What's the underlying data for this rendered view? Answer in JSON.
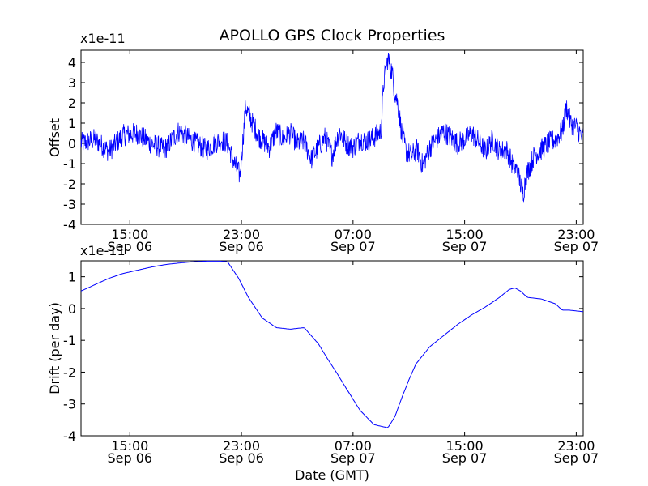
{
  "chart_data": [
    {
      "type": "line",
      "id": "offset",
      "title": "APOLLO GPS Clock Properties",
      "ylabel": "Offset",
      "xlabel": "",
      "scale_label": "x1e-11",
      "ylim": [
        -4,
        4.6
      ],
      "yticks": [
        -4,
        -3,
        -2,
        -1,
        0,
        1,
        2,
        3,
        4
      ],
      "ytick_labels": [
        "-4",
        "-3",
        "-2",
        "-1",
        "0",
        "1",
        "2",
        "3",
        "4"
      ],
      "xlim_hours": [
        11.5,
        47.5
      ],
      "xticks": [
        {
          "hour": 15,
          "time": "15:00",
          "date": "Sep 06"
        },
        {
          "hour": 23,
          "time": "23:00",
          "date": "Sep 06"
        },
        {
          "hour": 31,
          "time": "07:00",
          "date": "Sep 07"
        },
        {
          "hour": 39,
          "time": "15:00",
          "date": "Sep 07"
        },
        {
          "hour": 47,
          "time": "23:00",
          "date": "Sep 07"
        }
      ],
      "color": "#0000ff",
      "series": [
        {
          "name": "Offset",
          "x_hours": [
            11.5,
            12.5,
            13.5,
            14.5,
            15.5,
            16.5,
            17.5,
            18.5,
            19.5,
            20.5,
            21.5,
            22.0,
            22.5,
            22.9,
            23.3,
            23.8,
            24.3,
            25.0,
            25.5,
            26.0,
            26.5,
            27.0,
            27.5,
            28.0,
            28.5,
            29.0,
            29.5,
            30.0,
            30.5,
            31.0,
            31.5,
            32.0,
            32.5,
            33.0,
            33.2,
            33.5,
            33.8,
            34.0,
            34.2,
            34.5,
            34.8,
            35.2,
            35.6,
            36.0,
            36.5,
            37.0,
            37.5,
            38.0,
            38.5,
            39.0,
            39.5,
            40.0,
            40.5,
            41.0,
            41.5,
            42.0,
            42.4,
            42.8,
            43.0,
            43.2,
            43.4,
            43.7,
            44.0,
            44.5,
            45.0,
            45.5,
            46.0,
            46.3,
            46.6,
            47.0,
            47.5
          ],
          "values": [
            0.0,
            0.2,
            -0.4,
            0.4,
            0.5,
            0.0,
            -0.3,
            0.6,
            0.1,
            -0.3,
            0.2,
            0.0,
            -1.0,
            -1.6,
            1.8,
            1.0,
            0.3,
            -0.2,
            0.6,
            0.2,
            0.5,
            0.0,
            0.1,
            -0.8,
            -0.2,
            0.3,
            -0.6,
            0.6,
            0.0,
            -0.2,
            0.2,
            0.1,
            0.3,
            0.6,
            3.0,
            4.2,
            3.5,
            2.5,
            2.0,
            0.5,
            -0.4,
            -0.6,
            -0.3,
            -1.1,
            -0.2,
            0.2,
            0.6,
            0.3,
            0.0,
            0.2,
            0.5,
            0.1,
            -0.4,
            0.2,
            -0.4,
            -0.3,
            -1.0,
            -1.4,
            -2.0,
            -2.5,
            -1.6,
            -1.1,
            -0.6,
            -0.3,
            0.0,
            0.2,
            0.6,
            1.8,
            1.0,
            0.8,
            0.2
          ],
          "noise_amplitude": 0.55
        }
      ]
    },
    {
      "type": "line",
      "id": "drift",
      "title": "",
      "ylabel": "Drift (per day)",
      "xlabel": "Date (GMT)",
      "scale_label": "x1e-11",
      "ylim": [
        -4,
        1.5
      ],
      "yticks": [
        -4,
        -3,
        -2,
        -1,
        0,
        1
      ],
      "ytick_labels": [
        "-4",
        "-3",
        "-2",
        "-1",
        "0",
        "1"
      ],
      "xlim_hours": [
        11.5,
        47.5
      ],
      "xticks": [
        {
          "hour": 15,
          "time": "15:00",
          "date": "Sep 06"
        },
        {
          "hour": 23,
          "time": "23:00",
          "date": "Sep 06"
        },
        {
          "hour": 31,
          "time": "07:00",
          "date": "Sep 07"
        },
        {
          "hour": 39,
          "time": "15:00",
          "date": "Sep 07"
        },
        {
          "hour": 47,
          "time": "23:00",
          "date": "Sep 07"
        }
      ],
      "color": "#0000ff",
      "series": [
        {
          "name": "Drift",
          "x_hours": [
            11.5,
            12.5,
            13.5,
            14.5,
            15.5,
            16.5,
            17.5,
            18.5,
            19.5,
            20.5,
            21.5,
            22.0,
            22.8,
            23.5,
            24.5,
            25.5,
            26.5,
            27.5,
            28.5,
            29.2,
            29.8,
            30.5,
            31.5,
            32.5,
            33.5,
            34.0,
            34.5,
            35.0,
            35.5,
            36.5,
            37.5,
            38.5,
            39.5,
            40.5,
            41.5,
            42.2,
            42.6,
            43.0,
            43.5,
            44.5,
            45.5,
            46.0,
            46.5,
            47.5
          ],
          "values": [
            0.55,
            0.75,
            0.95,
            1.1,
            1.2,
            1.3,
            1.38,
            1.43,
            1.47,
            1.49,
            1.49,
            1.47,
            0.95,
            0.35,
            -0.3,
            -0.6,
            -0.65,
            -0.6,
            -1.1,
            -1.6,
            -2.0,
            -2.5,
            -3.2,
            -3.65,
            -3.75,
            -3.4,
            -2.8,
            -2.25,
            -1.75,
            -1.2,
            -0.85,
            -0.5,
            -0.2,
            0.05,
            0.35,
            0.6,
            0.65,
            0.55,
            0.35,
            0.3,
            0.15,
            -0.05,
            -0.05,
            -0.1
          ]
        }
      ]
    }
  ]
}
